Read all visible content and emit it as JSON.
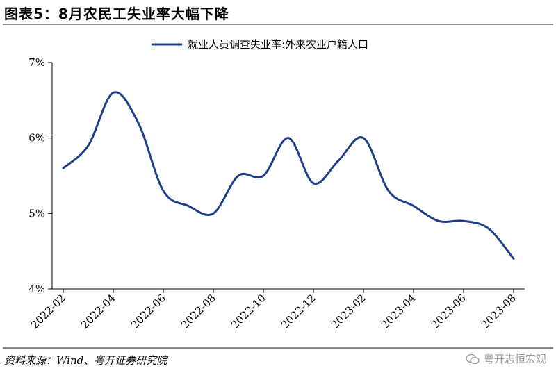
{
  "header": {
    "title": "图表5：8月农民工失业率大幅下降"
  },
  "footer": {
    "source": "资料来源：Wind、粤开证券研究院",
    "watermark": "粤开志恒宏观",
    "watermark_icon": "wechat-icon"
  },
  "colors": {
    "series": "#1f3e8a",
    "axis": "#000000",
    "rule": "#8a8a8a"
  },
  "chart_data": {
    "type": "line",
    "title": "",
    "xlabel": "",
    "ylabel": "",
    "x_ticks": [
      "2022-02",
      "2022-04",
      "2022-06",
      "2022-08",
      "2022-10",
      "2022-12",
      "2023-02",
      "2023-04",
      "2023-06",
      "2023-08"
    ],
    "y_ticks": [
      "4%",
      "5%",
      "6%",
      "7%"
    ],
    "ylim": [
      4,
      7
    ],
    "grid": false,
    "legend_position": "top",
    "series": [
      {
        "name": "就业人员调查失业率:外来农业户籍人口",
        "x": [
          "2022-02",
          "2022-03",
          "2022-04",
          "2022-05",
          "2022-06",
          "2022-07",
          "2022-08",
          "2022-09",
          "2022-10",
          "2022-11",
          "2022-12",
          "2023-01",
          "2023-02",
          "2023-03",
          "2023-04",
          "2023-05",
          "2023-06",
          "2023-07",
          "2023-08"
        ],
        "values": [
          5.6,
          5.9,
          6.6,
          6.2,
          5.3,
          5.1,
          5.0,
          5.5,
          5.5,
          6.0,
          5.4,
          5.7,
          6.0,
          5.3,
          5.1,
          4.9,
          4.9,
          4.8,
          4.4
        ]
      }
    ]
  }
}
